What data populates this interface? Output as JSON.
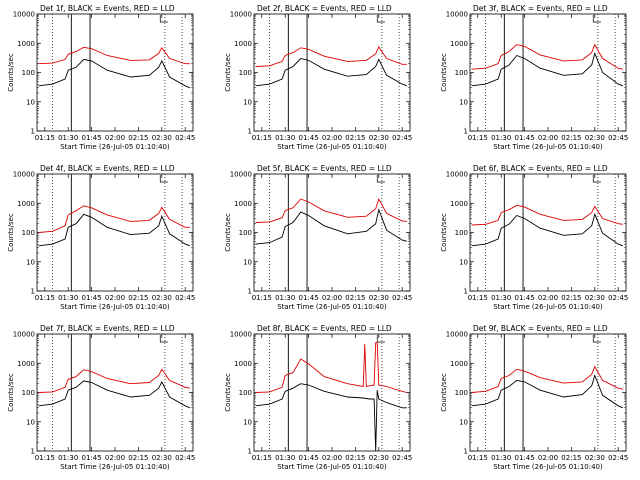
{
  "chart_data": [
    {
      "type": "line",
      "title": "Det 1f, BLACK = Events, RED = LLD",
      "xlabel": "Start Time (26-Jul-05 01:10:40)",
      "ylabel": "Counts/sec",
      "ylim": [
        1,
        10000
      ],
      "yscale": "log",
      "x_ticks": [
        "01:15",
        "01:30",
        "01:45",
        "02:00",
        "02:15",
        "02:30",
        "02:45"
      ],
      "y_ticks": [
        "1",
        "10",
        "100",
        "1000",
        "10000"
      ],
      "series": [
        {
          "name": "Events",
          "color": "#000000",
          "x": [
            "01:11",
            "01:20",
            "01:28",
            "01:30",
            "01:35",
            "01:40",
            "01:45",
            "01:55",
            "02:10",
            "02:22",
            "02:28",
            "02:30",
            "02:35",
            "02:45",
            "02:48"
          ],
          "y": [
            35,
            40,
            60,
            120,
            150,
            280,
            250,
            120,
            70,
            80,
            150,
            250,
            70,
            35,
            30
          ]
        },
        {
          "name": "LLD",
          "color": "#dd0000",
          "x": [
            "01:11",
            "01:20",
            "01:28",
            "01:30",
            "01:35",
            "01:40",
            "01:45",
            "01:55",
            "02:10",
            "02:22",
            "02:28",
            "02:30",
            "02:35",
            "02:45",
            "02:48"
          ],
          "y": [
            200,
            210,
            280,
            420,
            520,
            720,
            650,
            380,
            260,
            270,
            450,
            700,
            300,
            200,
            200
          ]
        }
      ]
    },
    {
      "type": "line",
      "title": "Det 2f, BLACK = Events, RED = LLD",
      "xlabel": "Start Time (26-Jul-05 01:10:40)",
      "ylabel": "Counts/sec",
      "ylim": [
        1,
        10000
      ],
      "yscale": "log",
      "x_ticks": [
        "01:15",
        "01:30",
        "01:45",
        "02:00",
        "02:15",
        "02:30",
        "02:45"
      ],
      "y_ticks": [
        "1",
        "10",
        "100",
        "1000",
        "10000"
      ],
      "series": [
        {
          "name": "Events",
          "color": "#000000",
          "x": [
            "01:11",
            "01:20",
            "01:28",
            "01:30",
            "01:35",
            "01:40",
            "01:45",
            "01:55",
            "02:10",
            "02:22",
            "02:28",
            "02:30",
            "02:35",
            "02:45",
            "02:48"
          ],
          "y": [
            35,
            40,
            60,
            120,
            160,
            300,
            260,
            130,
            75,
            85,
            160,
            280,
            80,
            40,
            35
          ]
        },
        {
          "name": "LLD",
          "color": "#dd0000",
          "x": [
            "01:11",
            "01:20",
            "01:28",
            "01:30",
            "01:35",
            "01:40",
            "01:45",
            "01:55",
            "02:10",
            "02:22",
            "02:28",
            "02:30",
            "02:35",
            "02:45",
            "02:48"
          ],
          "y": [
            160,
            170,
            240,
            380,
            480,
            700,
            620,
            360,
            240,
            260,
            440,
            750,
            300,
            190,
            190
          ]
        }
      ]
    },
    {
      "type": "line",
      "title": "Det 3f, BLACK = Events, RED = LLD",
      "xlabel": "Start Time (26-Jul-05 01:10:40)",
      "ylabel": "Counts/sec",
      "ylim": [
        1,
        10000
      ],
      "yscale": "log",
      "x_ticks": [
        "01:15",
        "01:30",
        "01:45",
        "02:00",
        "02:15",
        "02:30",
        "02:45"
      ],
      "y_ticks": [
        "1",
        "10",
        "100",
        "1000",
        "10000"
      ],
      "series": [
        {
          "name": "Events",
          "color": "#000000",
          "x": [
            "01:11",
            "01:20",
            "01:28",
            "01:30",
            "01:35",
            "01:40",
            "01:45",
            "01:55",
            "02:10",
            "02:22",
            "02:28",
            "02:30",
            "02:35",
            "02:45",
            "02:48"
          ],
          "y": [
            35,
            40,
            60,
            130,
            180,
            380,
            300,
            140,
            80,
            90,
            180,
            450,
            100,
            40,
            35
          ]
        },
        {
          "name": "LLD",
          "color": "#dd0000",
          "x": [
            "01:11",
            "01:20",
            "01:28",
            "01:30",
            "01:35",
            "01:40",
            "01:45",
            "01:55",
            "02:10",
            "02:22",
            "02:28",
            "02:30",
            "02:35",
            "02:45",
            "02:48"
          ],
          "y": [
            130,
            140,
            200,
            380,
            520,
            900,
            780,
            400,
            250,
            270,
            480,
            900,
            300,
            140,
            130
          ]
        }
      ]
    },
    {
      "type": "line",
      "title": "Det 4f, BLACK = Events, RED = LLD",
      "xlabel": "Start Time (26-Jul-05 01:10:40)",
      "ylabel": "Counts/sec",
      "ylim": [
        1,
        10000
      ],
      "yscale": "log",
      "x_ticks": [
        "01:15",
        "01:30",
        "01:45",
        "02:00",
        "02:15",
        "02:30",
        "02:45"
      ],
      "y_ticks": [
        "1",
        "10",
        "100",
        "1000",
        "10000"
      ],
      "series": [
        {
          "name": "Events",
          "color": "#000000",
          "x": [
            "01:11",
            "01:20",
            "01:28",
            "01:30",
            "01:35",
            "01:40",
            "01:45",
            "01:55",
            "02:10",
            "02:22",
            "02:28",
            "02:30",
            "02:35",
            "02:45",
            "02:48"
          ],
          "y": [
            35,
            40,
            60,
            150,
            200,
            420,
            330,
            150,
            85,
            95,
            170,
            360,
            90,
            40,
            35
          ]
        },
        {
          "name": "LLD",
          "color": "#dd0000",
          "x": [
            "01:11",
            "01:20",
            "01:28",
            "01:30",
            "01:35",
            "01:40",
            "01:45",
            "01:55",
            "02:10",
            "02:22",
            "02:28",
            "02:30",
            "02:35",
            "02:45",
            "02:48"
          ],
          "y": [
            100,
            110,
            170,
            400,
            550,
            820,
            700,
            400,
            240,
            260,
            450,
            720,
            280,
            150,
            150
          ]
        }
      ]
    },
    {
      "type": "line",
      "title": "Det 5f, BLACK = Events, RED = LLD",
      "xlabel": "Start Time (26-Jul-05 01:10:40)",
      "ylabel": "Counts/sec",
      "ylim": [
        1,
        10000
      ],
      "yscale": "log",
      "x_ticks": [
        "01:15",
        "01:30",
        "01:45",
        "02:00",
        "02:15",
        "02:30",
        "02:45"
      ],
      "y_ticks": [
        "1",
        "10",
        "100",
        "1000",
        "10000"
      ],
      "series": [
        {
          "name": "Events",
          "color": "#000000",
          "x": [
            "01:11",
            "01:20",
            "01:28",
            "01:30",
            "01:35",
            "01:40",
            "01:45",
            "01:55",
            "02:10",
            "02:22",
            "02:28",
            "02:30",
            "02:35",
            "02:45",
            "02:48"
          ],
          "y": [
            40,
            45,
            70,
            160,
            220,
            500,
            380,
            170,
            90,
            110,
            200,
            600,
            120,
            55,
            50
          ]
        },
        {
          "name": "LLD",
          "color": "#dd0000",
          "x": [
            "01:11",
            "01:20",
            "01:28",
            "01:30",
            "01:35",
            "01:40",
            "01:45",
            "01:55",
            "02:10",
            "02:22",
            "02:28",
            "02:30",
            "02:35",
            "02:45",
            "02:48"
          ],
          "y": [
            220,
            230,
            320,
            560,
            700,
            1400,
            1100,
            550,
            330,
            360,
            650,
            1400,
            450,
            250,
            240
          ]
        }
      ]
    },
    {
      "type": "line",
      "title": "Det 6f, BLACK = Events, RED = LLD",
      "xlabel": "Start Time (26-Jul-05 01:10:40)",
      "ylabel": "Counts/sec",
      "ylim": [
        1,
        10000
      ],
      "yscale": "log",
      "x_ticks": [
        "01:15",
        "01:30",
        "01:45",
        "02:00",
        "02:15",
        "02:30",
        "02:45"
      ],
      "y_ticks": [
        "1",
        "10",
        "100",
        "1000",
        "10000"
      ],
      "series": [
        {
          "name": "Events",
          "color": "#000000",
          "x": [
            "01:11",
            "01:20",
            "01:28",
            "01:30",
            "01:35",
            "01:40",
            "01:45",
            "01:55",
            "02:10",
            "02:22",
            "02:28",
            "02:30",
            "02:35",
            "02:45",
            "02:48"
          ],
          "y": [
            35,
            40,
            60,
            140,
            190,
            380,
            300,
            140,
            80,
            90,
            170,
            420,
            95,
            40,
            35
          ]
        },
        {
          "name": "LLD",
          "color": "#dd0000",
          "x": [
            "01:11",
            "01:20",
            "01:28",
            "01:30",
            "01:35",
            "01:40",
            "01:45",
            "01:55",
            "02:10",
            "02:22",
            "02:28",
            "02:30",
            "02:35",
            "02:45",
            "02:48"
          ],
          "y": [
            180,
            190,
            260,
            480,
            600,
            850,
            740,
            420,
            260,
            280,
            480,
            780,
            300,
            200,
            190
          ]
        }
      ]
    },
    {
      "type": "line",
      "title": "Det 7f, BLACK = Events, RED = LLD",
      "xlabel": "Start Time (26-Jul-05 01:10:40)",
      "ylabel": "Counts/sec",
      "ylim": [
        1,
        10000
      ],
      "yscale": "log",
      "x_ticks": [
        "01:15",
        "01:30",
        "01:45",
        "02:00",
        "02:15",
        "02:30",
        "02:45"
      ],
      "y_ticks": [
        "1",
        "10",
        "100",
        "1000",
        "10000"
      ],
      "series": [
        {
          "name": "Events",
          "color": "#000000",
          "x": [
            "01:11",
            "01:20",
            "01:28",
            "01:30",
            "01:35",
            "01:40",
            "01:45",
            "01:55",
            "02:10",
            "02:22",
            "02:28",
            "02:30",
            "02:35",
            "02:45",
            "02:48"
          ],
          "y": [
            35,
            40,
            60,
            120,
            150,
            250,
            220,
            120,
            70,
            80,
            140,
            230,
            70,
            35,
            30
          ]
        },
        {
          "name": "LLD",
          "color": "#dd0000",
          "x": [
            "01:11",
            "01:20",
            "01:28",
            "01:30",
            "01:35",
            "01:40",
            "01:45",
            "01:55",
            "02:10",
            "02:22",
            "02:28",
            "02:30",
            "02:35",
            "02:45",
            "02:48"
          ],
          "y": [
            100,
            105,
            150,
            280,
            350,
            600,
            520,
            300,
            200,
            220,
            380,
            620,
            260,
            150,
            140
          ]
        }
      ]
    },
    {
      "type": "line",
      "title": "Det 8f, BLACK = Events, RED = LLD",
      "xlabel": "Start Time (26-Jul-05 01:10:40)",
      "ylabel": "Counts/sec",
      "ylim": [
        1,
        10000
      ],
      "yscale": "log",
      "x_ticks": [
        "01:15",
        "01:30",
        "01:45",
        "02:00",
        "02:15",
        "02:30",
        "02:45"
      ],
      "y_ticks": [
        "1",
        "10",
        "100",
        "1000",
        "10000"
      ],
      "series": [
        {
          "name": "Events",
          "color": "#000000",
          "x": [
            "01:11",
            "01:20",
            "01:28",
            "01:30",
            "01:35",
            "01:40",
            "01:45",
            "01:55",
            "02:10",
            "02:20",
            "02:24",
            "02:27",
            "02:28",
            "02:29",
            "02:30",
            "02:35",
            "02:45",
            "02:48"
          ],
          "y": [
            35,
            40,
            60,
            110,
            140,
            200,
            180,
            110,
            70,
            65,
            60,
            60,
            1,
            120,
            60,
            45,
            30,
            30
          ]
        },
        {
          "name": "LLD",
          "color": "#dd0000",
          "x": [
            "01:11",
            "01:20",
            "01:28",
            "01:30",
            "01:35",
            "01:40",
            "01:45",
            "01:55",
            "02:10",
            "02:20",
            "02:21",
            "02:22",
            "02:24",
            "02:27",
            "02:28",
            "02:29",
            "02:30",
            "02:35",
            "02:45",
            "02:48"
          ],
          "y": [
            100,
            105,
            150,
            380,
            480,
            1400,
            950,
            350,
            200,
            160,
            4500,
            160,
            170,
            180,
            5000,
            5200,
            180,
            160,
            110,
            100
          ]
        }
      ]
    },
    {
      "type": "line",
      "title": "Det 9f, BLACK = Events, RED = LLD",
      "xlabel": "Start Time (26-Jul-05 01:10:40)",
      "ylabel": "Counts/sec",
      "ylim": [
        1,
        10000
      ],
      "yscale": "log",
      "x_ticks": [
        "01:15",
        "01:30",
        "01:45",
        "02:00",
        "02:15",
        "02:30",
        "02:45"
      ],
      "y_ticks": [
        "1",
        "10",
        "100",
        "1000",
        "10000"
      ],
      "series": [
        {
          "name": "Events",
          "color": "#000000",
          "x": [
            "01:11",
            "01:20",
            "01:28",
            "01:30",
            "01:35",
            "01:40",
            "01:45",
            "01:55",
            "02:10",
            "02:22",
            "02:28",
            "02:30",
            "02:35",
            "02:45",
            "02:48"
          ],
          "y": [
            35,
            40,
            60,
            120,
            160,
            260,
            230,
            120,
            70,
            85,
            170,
            380,
            80,
            35,
            30
          ]
        },
        {
          "name": "LLD",
          "color": "#dd0000",
          "x": [
            "01:11",
            "01:20",
            "01:28",
            "01:30",
            "01:35",
            "01:40",
            "01:45",
            "01:55",
            "02:10",
            "02:22",
            "02:28",
            "02:30",
            "02:35",
            "02:45",
            "02:48"
          ],
          "y": [
            100,
            110,
            160,
            300,
            380,
            620,
            540,
            320,
            210,
            230,
            420,
            760,
            260,
            140,
            130
          ]
        }
      ]
    }
  ],
  "markers": {
    "solid_times": [
      "01:32",
      "01:44"
    ],
    "dotted_times": [
      "01:20",
      "02:32",
      "02:43"
    ]
  }
}
